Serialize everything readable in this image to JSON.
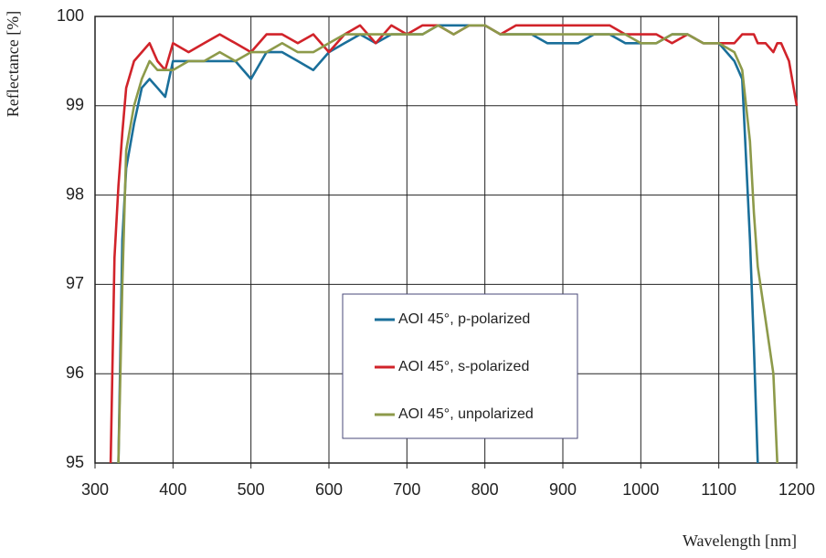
{
  "chart_data": {
    "type": "line",
    "x_label": "Wavelength [nm]",
    "y_label": "Reflectance [%]",
    "x": [
      320,
      325,
      330,
      335,
      340,
      350,
      360,
      370,
      380,
      390,
      400,
      420,
      440,
      460,
      480,
      500,
      520,
      540,
      560,
      580,
      600,
      620,
      640,
      660,
      680,
      700,
      720,
      740,
      760,
      780,
      800,
      820,
      840,
      860,
      880,
      900,
      920,
      940,
      960,
      980,
      1000,
      1020,
      1040,
      1060,
      1080,
      1100,
      1120,
      1130,
      1140,
      1145,
      1150,
      1160,
      1170,
      1175,
      1180,
      1190,
      1200
    ],
    "series": [
      {
        "name": "AOI 45°, p-polarized",
        "color": "#1a6f9a",
        "values": [
          null,
          null,
          95,
          97.5,
          98.3,
          98.8,
          99.2,
          99.3,
          99.2,
          99.1,
          99.5,
          99.5,
          99.5,
          99.5,
          99.5,
          99.3,
          99.6,
          99.6,
          99.5,
          99.4,
          99.6,
          99.7,
          99.8,
          99.7,
          99.8,
          99.8,
          99.8,
          99.9,
          99.9,
          99.9,
          99.9,
          99.8,
          99.8,
          99.8,
          99.7,
          99.7,
          99.7,
          99.8,
          99.8,
          99.7,
          99.7,
          99.7,
          99.8,
          99.8,
          99.7,
          99.7,
          99.5,
          99.3,
          97.5,
          96.3,
          95,
          null,
          null,
          null,
          null,
          null,
          null
        ]
      },
      {
        "name": "AOI 45°, s-polarized",
        "color": "#d1232a",
        "values": [
          95,
          97.3,
          98.1,
          98.7,
          99.2,
          99.5,
          99.6,
          99.7,
          99.5,
          99.4,
          99.7,
          99.6,
          99.7,
          99.8,
          99.7,
          99.6,
          99.8,
          99.8,
          99.7,
          99.8,
          99.6,
          99.8,
          99.9,
          99.7,
          99.9,
          99.8,
          99.9,
          99.9,
          99.8,
          99.9,
          99.9,
          99.8,
          99.9,
          99.9,
          99.9,
          99.9,
          99.9,
          99.9,
          99.9,
          99.8,
          99.8,
          99.8,
          99.7,
          99.8,
          99.7,
          99.7,
          99.7,
          99.8,
          99.8,
          99.8,
          99.7,
          99.7,
          99.6,
          99.7,
          99.7,
          99.5,
          99
        ]
      },
      {
        "name": "AOI 45°, unpolarized",
        "color": "#8d9a4a",
        "values": [
          null,
          null,
          95,
          97,
          98.5,
          99,
          99.3,
          99.5,
          99.4,
          99.4,
          99.4,
          99.5,
          99.5,
          99.6,
          99.5,
          99.6,
          99.6,
          99.7,
          99.6,
          99.6,
          99.7,
          99.8,
          99.8,
          99.8,
          99.8,
          99.8,
          99.8,
          99.9,
          99.8,
          99.9,
          99.9,
          99.8,
          99.8,
          99.8,
          99.8,
          99.8,
          99.8,
          99.8,
          99.8,
          99.8,
          99.7,
          99.7,
          99.8,
          99.8,
          99.7,
          99.7,
          99.6,
          99.4,
          98.6,
          97.8,
          97.2,
          96.6,
          96,
          95,
          null,
          null,
          null
        ]
      }
    ],
    "xlim": [
      300,
      1200
    ],
    "ylim": [
      95,
      100
    ],
    "xticks": [
      300,
      400,
      500,
      600,
      700,
      800,
      900,
      1000,
      1100,
      1200
    ],
    "yticks": [
      95,
      96,
      97,
      98,
      99,
      100
    ],
    "grid": true,
    "legend": "center"
  }
}
